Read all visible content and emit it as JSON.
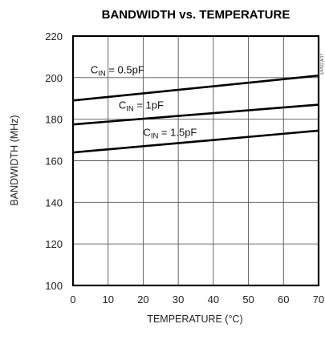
{
  "chart_data": {
    "type": "line",
    "title": "BANDWIDTH vs. TEMPERATURE",
    "xlabel": "TEMPERATURE (°C)",
    "ylabel": "BANDWIDTH (MHz)",
    "xlim": [
      0,
      70
    ],
    "ylim": [
      100,
      220
    ],
    "xticks": [
      0,
      10,
      20,
      30,
      40,
      50,
      60,
      70
    ],
    "yticks": [
      100,
      120,
      140,
      160,
      180,
      200,
      220
    ],
    "grid": true,
    "series": [
      {
        "label_main": "C",
        "label_sub": "IN",
        "label_rest": " = 0.5pF",
        "x": [
          0,
          70
        ],
        "y": [
          189,
          201
        ]
      },
      {
        "label_main": "C",
        "label_sub": "IN",
        "label_rest": " = 1pF",
        "x": [
          0,
          70
        ],
        "y": [
          177.5,
          187
        ]
      },
      {
        "label_main": "C",
        "label_sub": "IN",
        "label_rest": " = 1.5pF",
        "x": [
          0,
          70
        ],
        "y": [
          164,
          174.5
        ]
      }
    ],
    "series_label_anchor": [
      [
        5,
        202
      ],
      [
        13,
        185
      ],
      [
        20,
        172
      ]
    ],
    "corner_code": "1/4/5/2 A/17"
  }
}
